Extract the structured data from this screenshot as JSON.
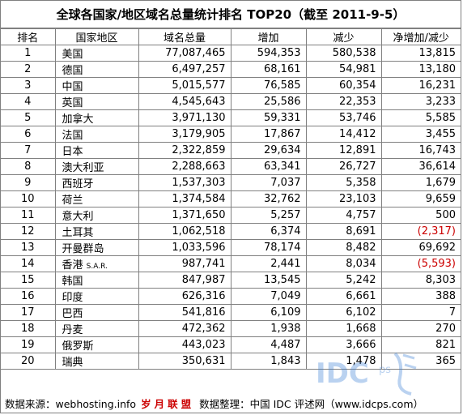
{
  "title": "全球各国家/地区域名总量统计排名 TOP20（截至 2011-9-5）",
  "headers": [
    "排名",
    "国家地区",
    "域名总量",
    "增加",
    "减少",
    "净增加/减少"
  ],
  "rows": [
    {
      "rank": "1",
      "country": "美国",
      "total": "77,087,465",
      "increase": "594,353",
      "decrease": "580,538",
      "net": "13,815",
      "neg": false
    },
    {
      "rank": "2",
      "country": "德国",
      "total": "6,497,257",
      "increase": "68,161",
      "decrease": "54,981",
      "net": "13,180",
      "neg": false
    },
    {
      "rank": "3",
      "country": "中国",
      "total": "5,015,577",
      "increase": "76,585",
      "decrease": "60,354",
      "net": "16,231",
      "neg": false
    },
    {
      "rank": "4",
      "country": "英国",
      "total": "4,545,643",
      "increase": "25,586",
      "decrease": "22,353",
      "net": "3,233",
      "neg": false
    },
    {
      "rank": "5",
      "country": "加拿大",
      "total": "3,971,130",
      "increase": "59,331",
      "decrease": "53,746",
      "net": "5,585",
      "neg": false
    },
    {
      "rank": "6",
      "country": "法国",
      "total": "3,179,905",
      "increase": "17,867",
      "decrease": "14,412",
      "net": "3,455",
      "neg": false
    },
    {
      "rank": "7",
      "country": "日本",
      "total": "2,322,859",
      "increase": "29,634",
      "decrease": "12,891",
      "net": "16,743",
      "neg": false
    },
    {
      "rank": "8",
      "country": "澳大利亚",
      "total": "2,288,663",
      "increase": "63,341",
      "decrease": "26,727",
      "net": "36,614",
      "neg": false
    },
    {
      "rank": "9",
      "country": "西班牙",
      "total": "1,537,303",
      "increase": "7,037",
      "decrease": "5,358",
      "net": "1,679",
      "neg": false
    },
    {
      "rank": "10",
      "country": "荷兰",
      "total": "1,374,584",
      "increase": "32,762",
      "decrease": "23,103",
      "net": "9,659",
      "neg": false
    },
    {
      "rank": "11",
      "country": "意大利",
      "total": "1,371,650",
      "increase": "5,257",
      "decrease": "4,757",
      "net": "500",
      "neg": false
    },
    {
      "rank": "12",
      "country": "土耳其",
      "total": "1,062,518",
      "increase": "6,374",
      "decrease": "8,691",
      "net": "(2,317)",
      "neg": true
    },
    {
      "rank": "13",
      "country": "开曼群岛",
      "total": "1,033,596",
      "increase": "78,174",
      "decrease": "8,482",
      "net": "69,692",
      "neg": false
    },
    {
      "rank": "14",
      "country": "香港",
      "country_suffix": "S.A.R.",
      "total": "987,741",
      "increase": "2,441",
      "decrease": "8,034",
      "net": "(5,593)",
      "neg": true
    },
    {
      "rank": "15",
      "country": "韩国",
      "total": "847,987",
      "increase": "13,545",
      "decrease": "5,242",
      "net": "8,303",
      "neg": false
    },
    {
      "rank": "16",
      "country": "印度",
      "total": "626,316",
      "increase": "7,049",
      "decrease": "6,661",
      "net": "388",
      "neg": false
    },
    {
      "rank": "17",
      "country": "巴西",
      "total": "541,816",
      "increase": "6,109",
      "decrease": "6,102",
      "net": "7",
      "neg": false
    },
    {
      "rank": "18",
      "country": "丹麦",
      "total": "472,362",
      "increase": "1,938",
      "decrease": "1,668",
      "net": "270",
      "neg": false
    },
    {
      "rank": "19",
      "country": "俄罗斯",
      "total": "443,023",
      "increase": "4,487",
      "decrease": "3,666",
      "net": "821",
      "neg": false
    },
    {
      "rank": "20",
      "country": "瑞典",
      "total": "350,631",
      "increase": "1,843",
      "decrease": "1,478",
      "net": "365",
      "neg": false
    }
  ],
  "footer": {
    "source_label": "数据来源：webhosting.info",
    "separator": "岁月联盟",
    "compiled_label": "数据整理：中国 IDC 评述网（www.idcps.com）"
  },
  "colors": {
    "negative": "#cc0000",
    "border": "#808080",
    "watermark": "#3d7fd6"
  }
}
